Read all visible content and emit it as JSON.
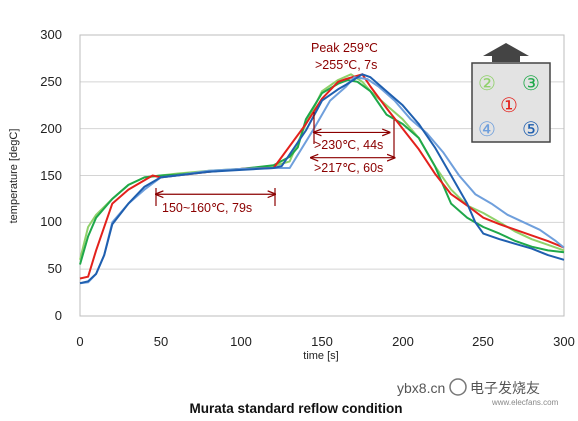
{
  "chart_data": {
    "type": "line",
    "title": "Murata standard reflow condition",
    "xlabel": "time [s]",
    "ylabel": "temperature [degC]",
    "xlim": [
      0,
      300
    ],
    "ylim": [
      0,
      300
    ],
    "xticks": [
      0,
      50,
      100,
      150,
      200,
      250,
      300
    ],
    "yticks": [
      0,
      50,
      100,
      150,
      200,
      250,
      300
    ],
    "grid": "horizontal",
    "colors": {
      "light_green": "#8fd16a",
      "green": "#1fa84a",
      "red": "#e3211c",
      "light_blue": "#6f9fdc",
      "blue": "#1f5faf",
      "annotation": "#8b0000",
      "grid": "#d4d4d4"
    },
    "series": [
      {
        "color_key": "light_green",
        "x": [
          0,
          5,
          10,
          20,
          30,
          40,
          50,
          60,
          80,
          100,
          120,
          130,
          140,
          150,
          160,
          168,
          175,
          180,
          190,
          200,
          210,
          220,
          230,
          240,
          250,
          260,
          270,
          280,
          290,
          300
        ],
        "y": [
          60,
          95,
          108,
          125,
          140,
          148,
          150,
          152,
          155,
          157,
          160,
          165,
          205,
          240,
          252,
          258,
          250,
          240,
          225,
          210,
          190,
          160,
          135,
          118,
          110,
          100,
          90,
          82,
          76,
          70
        ]
      },
      {
        "color_key": "green",
        "x": [
          0,
          5,
          10,
          20,
          30,
          40,
          50,
          60,
          80,
          100,
          120,
          130,
          135,
          140,
          150,
          160,
          166,
          172,
          180,
          190,
          200,
          210,
          220,
          230,
          240,
          250,
          260,
          270,
          280,
          290,
          300
        ],
        "y": [
          55,
          85,
          105,
          125,
          140,
          148,
          150,
          151,
          154,
          157,
          161,
          170,
          180,
          210,
          238,
          248,
          252,
          250,
          240,
          215,
          205,
          190,
          160,
          120,
          105,
          95,
          88,
          80,
          74,
          70,
          68
        ]
      },
      {
        "color_key": "red",
        "x": [
          0,
          5,
          10,
          20,
          30,
          45,
          50,
          60,
          80,
          100,
          120,
          140,
          150,
          160,
          165,
          175,
          180,
          190,
          200,
          210,
          220,
          230,
          240,
          250,
          260,
          270,
          280,
          290,
          300
        ],
        "y": [
          40,
          42,
          70,
          120,
          135,
          150,
          148,
          150,
          154,
          157,
          158,
          205,
          232,
          250,
          253,
          258,
          245,
          222,
          200,
          178,
          152,
          130,
          118,
          105,
          98,
          92,
          86,
          80,
          73
        ]
      },
      {
        "color_key": "light_blue",
        "x": [
          0,
          5,
          10,
          15,
          20,
          30,
          40,
          50,
          60,
          80,
          100,
          120,
          130,
          145,
          155,
          165,
          170,
          178,
          185,
          195,
          205,
          215,
          225,
          235,
          245,
          255,
          265,
          275,
          285,
          295,
          300
        ],
        "y": [
          35,
          36,
          45,
          65,
          100,
          120,
          135,
          148,
          150,
          155,
          157,
          158,
          158,
          200,
          230,
          245,
          255,
          253,
          245,
          230,
          210,
          195,
          175,
          150,
          130,
          120,
          108,
          100,
          92,
          80,
          73
        ]
      },
      {
        "color_key": "blue",
        "x": [
          0,
          5,
          10,
          15,
          20,
          30,
          40,
          50,
          60,
          80,
          100,
          120,
          125,
          140,
          150,
          160,
          165,
          175,
          180,
          190,
          200,
          210,
          220,
          230,
          240,
          245,
          250,
          260,
          270,
          280,
          290,
          300
        ],
        "y": [
          35,
          37,
          45,
          65,
          98,
          120,
          138,
          148,
          150,
          154,
          156,
          158,
          160,
          198,
          230,
          242,
          247,
          258,
          255,
          240,
          225,
          205,
          180,
          150,
          120,
          100,
          88,
          82,
          77,
          72,
          65,
          60
        ]
      }
    ],
    "annotations": {
      "peak": "Peak 259℃",
      "above255": ">255℃, 7s",
      "above230": ">230℃, 44s",
      "above217": ">217℃, 60s",
      "soak": "150~160℃, 79s"
    },
    "annotation_ranges": {
      "soak": {
        "x0": 47,
        "x1": 121,
        "y": 130
      },
      "above230": {
        "x0": 145,
        "x1": 192,
        "y": 196
      },
      "above217": {
        "x0": 143,
        "x1": 195,
        "y": 169
      }
    },
    "legend_numbers": [
      "②",
      "③",
      "①",
      "④",
      "⑤"
    ],
    "legend_number_color_keys": [
      "light_green",
      "green",
      "red",
      "light_blue",
      "blue"
    ],
    "legend_arrow_icon": "up-arrow-icon"
  },
  "watermark": {
    "left": "ybx8.cn",
    "right": "电子发烧友",
    "small": "www.elecfans.com"
  }
}
